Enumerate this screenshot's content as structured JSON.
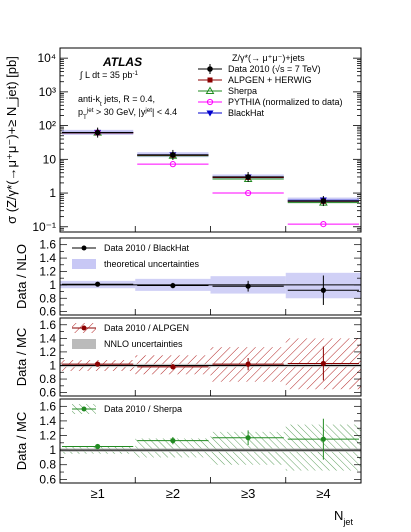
{
  "chart_data": [
    {
      "type": "line",
      "panel": "main",
      "log_scale_y": true,
      "ylim": [
        0.07,
        20000
      ],
      "ylabel": "σ (Z/γ*(→μ⁺μ⁻)+≥ N_jet) [pb]",
      "y_tick_labels": [
        "10⁴",
        "10³",
        "10²",
        "10",
        "1",
        "10⁻¹"
      ],
      "y_tick_values": [
        10000,
        1000,
        100,
        10,
        1,
        0.1
      ],
      "categories": [
        "≥1",
        "≥2",
        "≥3",
        "≥4"
      ],
      "annotations": {
        "atlas": "ATLAS",
        "lumi": "∫ L dt = 35 pb⁻¹",
        "jets": "anti-k_t jets,  R = 0.4,",
        "cuts": "p_T^jet > 30 GeV, |y^jet| < 4.4"
      },
      "legend_title": "Z/γ*(→ μ⁺μ⁻)+jets",
      "legend": [
        "Data 2010 (√s = 7 TeV)",
        "ALPGEN + HERWIG",
        "Sherpa",
        "PYTHIA (normalized to data)",
        "BlackHat"
      ],
      "series": [
        {
          "name": "Data 2010 (√s = 7 TeV)",
          "values": [
            62,
            13.5,
            3.0,
            0.58
          ],
          "color": "#000000"
        },
        {
          "name": "ALPGEN + HERWIG",
          "values": [
            61,
            13.2,
            2.9,
            0.57
          ],
          "color": "#8b0000"
        },
        {
          "name": "Sherpa",
          "values": [
            62,
            12.8,
            2.6,
            0.52
          ],
          "color": "#228b22"
        },
        {
          "name": "PYTHIA (normalized to data)",
          "values": [
            62,
            7.2,
            1.0,
            0.12
          ],
          "color": "#ff00ff"
        },
        {
          "name": "BlackHat",
          "values": [
            63,
            13.7,
            3.0,
            0.62
          ],
          "color": "#0000cc"
        }
      ]
    },
    {
      "type": "line",
      "panel": "ratio-nlo",
      "ylabel": "Data / NLO",
      "ylim": [
        0.55,
        1.7
      ],
      "y_tick_labels": [
        "0.6",
        "0.8",
        "1",
        "1.2",
        "1.4",
        "1.6"
      ],
      "categories": [
        "≥1",
        "≥2",
        "≥3",
        "≥4"
      ],
      "legend": [
        "Data 2010 / BlackHat",
        "theoretical uncertainties"
      ],
      "series": [
        {
          "name": "Data 2010 / BlackHat",
          "values": [
            1.01,
            0.99,
            0.98,
            0.92
          ],
          "errors": [
            0.03,
            0.04,
            0.08,
            0.22
          ]
        }
      ],
      "band": [
        [
          0.95,
          1.06
        ],
        [
          0.91,
          1.09
        ],
        [
          0.87,
          1.13
        ],
        [
          0.8,
          1.18
        ]
      ],
      "band_color": "#c8c8f5"
    },
    {
      "type": "line",
      "panel": "ratio-alpgen",
      "ylabel": "Data / MC",
      "ylim": [
        0.55,
        1.7
      ],
      "y_tick_labels": [
        "0.6",
        "0.8",
        "1",
        "1.2",
        "1.4",
        "1.6"
      ],
      "categories": [
        "≥1",
        "≥2",
        "≥3",
        "≥4"
      ],
      "legend": [
        "Data 2010 / ALPGEN",
        "NNLO uncertainties"
      ],
      "series": [
        {
          "name": "Data 2010 / ALPGEN",
          "values": [
            1.02,
            0.98,
            1.02,
            1.03
          ],
          "errors": [
            0.03,
            0.04,
            0.09,
            0.25
          ]
        }
      ],
      "band": [
        [
          0.92,
          1.08
        ],
        [
          0.87,
          1.15
        ],
        [
          0.76,
          1.27
        ],
        [
          0.65,
          1.4
        ]
      ],
      "nnlo_band": [
        0.975,
        1.025
      ]
    },
    {
      "type": "line",
      "panel": "ratio-sherpa",
      "ylabel": "Data / MC",
      "ylim": [
        0.55,
        1.7
      ],
      "y_tick_labels": [
        "0.6",
        "0.8",
        "1",
        "1.2",
        "1.4",
        "1.6"
      ],
      "categories": [
        "≥1",
        "≥2",
        "≥3",
        "≥4"
      ],
      "xlabel": "N_jet",
      "legend": [
        "Data 2010 / Sherpa"
      ],
      "series": [
        {
          "name": "Data 2010 / Sherpa",
          "values": [
            1.05,
            1.13,
            1.17,
            1.15
          ],
          "errors": [
            0.03,
            0.05,
            0.1,
            0.28
          ]
        }
      ],
      "band": [
        [
          0.95,
          1.05
        ],
        [
          0.9,
          1.16
        ],
        [
          0.8,
          1.25
        ],
        [
          0.72,
          1.35
        ]
      ],
      "nnlo_band": [
        0.975,
        1.025
      ]
    }
  ]
}
